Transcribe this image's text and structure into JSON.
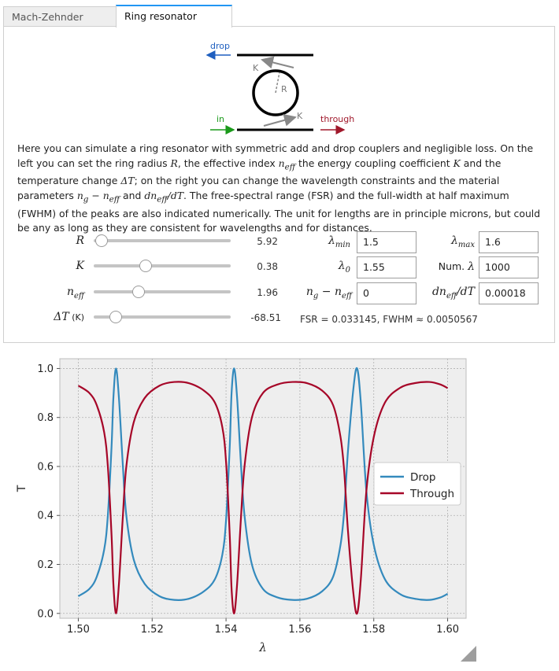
{
  "tabs": [
    {
      "label": "Mach-Zehnder",
      "active": false
    },
    {
      "label": "Ring resonator",
      "active": true
    }
  ],
  "schematic": {
    "drop_label": "drop",
    "in_label": "in",
    "through_label": "through",
    "k_label": "K",
    "r_label": "R",
    "colors": {
      "drop": "#1f5fbf",
      "in": "#1a9a1a",
      "through": "#a0182b"
    }
  },
  "description": {
    "s1": "Here you can simulate a ring resonator with symmetric add and drop couplers and negligible loss. On the left you can set the ring radius ",
    "m1": "R",
    "s2": ", the effective index ",
    "m2": "n",
    "m2sub": "eff",
    "s3": " the energy coupling coefficient ",
    "m3": "K",
    "s4": " and the temperature change ",
    "m4": "ΔT",
    "s5": "; on the right you can change the wavelength constraints and the material parameters ",
    "m5a": "n",
    "m5asub": "g",
    "m5op": " − ",
    "m5b": "n",
    "m5bsub": "eff",
    "s6": " and ",
    "m6": "dn",
    "m6sub": "eff",
    "m6tail": "/dT",
    "s7": ". The free-spectral range (FSR) and the full-width at half maximum (FWHM) of the peaks are also indicated numerically. The unit for lengths are in principle microns, but could be any as long as they are consistent for wavelengths and for distances."
  },
  "sliders": [
    {
      "sym": "R",
      "sub": "",
      "unit": "",
      "value": "5.92",
      "fraction": 0.06
    },
    {
      "sym": "K",
      "sub": "",
      "unit": "",
      "value": "0.38",
      "fraction": 0.38
    },
    {
      "sym": "n",
      "sub": "eff",
      "unit": "",
      "value": "1.96",
      "fraction": 0.33
    },
    {
      "sym": "ΔT",
      "sub": "",
      "unit": " (K)",
      "value": "-68.51",
      "fraction": 0.16
    }
  ],
  "fields": {
    "lmin_sym": "λ",
    "lmin_sub": "min",
    "lmin": "1.5",
    "lmax_sym": "λ",
    "lmax_sub": "max",
    "lmax": "1.6",
    "l0_sym": "λ",
    "l0_sub": "0",
    "l0": "1.55",
    "numl_text": "Num. ",
    "numl_sym": "λ",
    "numl": "1000",
    "ng_a": "n",
    "ng_asub": "g",
    "ng_op": " − ",
    "ng_b": "n",
    "ng_bsub": "eff",
    "ng": "0",
    "dn_a": "dn",
    "dn_sub": "eff",
    "dn_tail": "/dT",
    "dn": "0.00018"
  },
  "info": "FSR = 0.033145, FWHM ≈ 0.0050567",
  "chart_data": {
    "type": "line",
    "xlabel": "λ",
    "ylabel": "T",
    "xlim": [
      1.495,
      1.605
    ],
    "ylim": [
      -0.02,
      1.04
    ],
    "xticks": [
      "1.50",
      "1.52",
      "1.54",
      "1.56",
      "1.58",
      "1.60"
    ],
    "yticks": [
      "0.0",
      "0.2",
      "0.4",
      "0.6",
      "0.8",
      "1.0"
    ],
    "grid": true,
    "legend_position": "right",
    "series": [
      {
        "name": "Drop",
        "color": "#348abd",
        "x": [
          1.5,
          1.503,
          1.505,
          1.507,
          1.508,
          1.509,
          1.5095,
          1.5102,
          1.511,
          1.512,
          1.513,
          1.515,
          1.518,
          1.522,
          1.526,
          1.53,
          1.534,
          1.537,
          1.539,
          1.54,
          1.541,
          1.5415,
          1.5422,
          1.543,
          1.544,
          1.545,
          1.547,
          1.55,
          1.554,
          1.558,
          1.562,
          1.566,
          1.569,
          1.571,
          1.572,
          1.573,
          1.5745,
          1.5755,
          1.5765,
          1.578,
          1.58,
          1.583,
          1.587,
          1.591,
          1.595,
          1.598,
          1.6
        ],
        "y": [
          0.07,
          0.1,
          0.15,
          0.26,
          0.4,
          0.68,
          0.88,
          1.0,
          0.88,
          0.62,
          0.4,
          0.22,
          0.12,
          0.07,
          0.055,
          0.06,
          0.09,
          0.14,
          0.24,
          0.38,
          0.68,
          0.9,
          1.0,
          0.88,
          0.62,
          0.4,
          0.2,
          0.1,
          0.065,
          0.055,
          0.06,
          0.09,
          0.15,
          0.28,
          0.42,
          0.66,
          0.92,
          1.0,
          0.86,
          0.5,
          0.28,
          0.14,
          0.08,
          0.06,
          0.055,
          0.065,
          0.08
        ]
      },
      {
        "name": "Through",
        "color": "#a60628",
        "x": [
          1.5,
          1.503,
          1.505,
          1.507,
          1.508,
          1.509,
          1.5095,
          1.5102,
          1.511,
          1.512,
          1.513,
          1.515,
          1.518,
          1.522,
          1.526,
          1.53,
          1.534,
          1.537,
          1.539,
          1.54,
          1.541,
          1.5415,
          1.5422,
          1.543,
          1.544,
          1.545,
          1.547,
          1.55,
          1.554,
          1.558,
          1.562,
          1.566,
          1.569,
          1.571,
          1.572,
          1.573,
          1.5745,
          1.5755,
          1.5765,
          1.578,
          1.58,
          1.583,
          1.587,
          1.591,
          1.595,
          1.598,
          1.6
        ],
        "y": [
          0.93,
          0.9,
          0.85,
          0.74,
          0.6,
          0.32,
          0.12,
          0.0,
          0.12,
          0.38,
          0.6,
          0.78,
          0.88,
          0.93,
          0.945,
          0.94,
          0.91,
          0.86,
          0.76,
          0.62,
          0.32,
          0.1,
          0.0,
          0.12,
          0.38,
          0.6,
          0.8,
          0.9,
          0.935,
          0.945,
          0.94,
          0.91,
          0.85,
          0.72,
          0.58,
          0.34,
          0.08,
          0.0,
          0.14,
          0.5,
          0.72,
          0.86,
          0.92,
          0.94,
          0.945,
          0.935,
          0.92
        ]
      }
    ]
  }
}
